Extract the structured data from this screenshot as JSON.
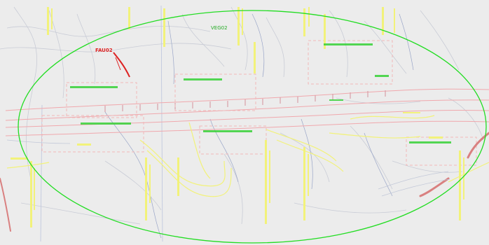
{
  "labels": {
    "veg": "VEG02",
    "fau": "FAU02"
  },
  "colors": {
    "background": "#ececec",
    "contour": "#c9ccd6",
    "contour_blue": "#9aa6c8",
    "road_edge": "#f0a8ad",
    "road_center": "#e8b7b7",
    "annotation_yellow": "#f2f27a",
    "callout_green": "#37d137",
    "ellipse": "#22dd22",
    "fault_red": "#dd2222",
    "dashed_pink": "#f2b8b8",
    "river_red": "#d98080"
  }
}
